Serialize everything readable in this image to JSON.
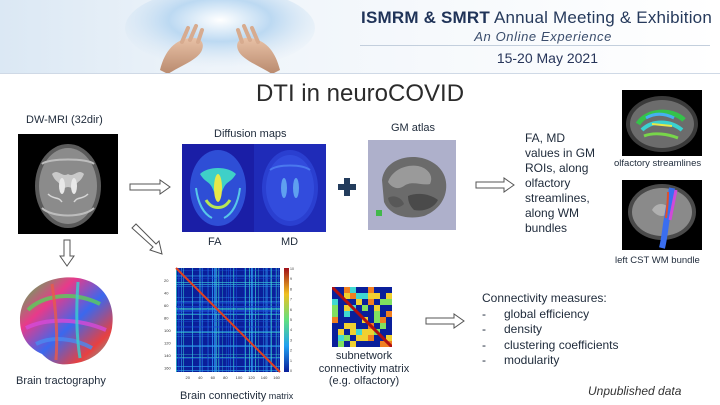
{
  "banner": {
    "conference_title_bold": "ISMRM & SMRT",
    "conference_title_rest": " Annual Meeting & Exhibition",
    "subtitle": "An Online Experience",
    "dates": "15-20 May 2021"
  },
  "slide": {
    "title": "DTI in neuroCOVID",
    "dwmri_label": "DW-MRI (32dir)",
    "diffusion_maps_label": "Diffusion maps",
    "fa_label": "FA",
    "md_label": "MD",
    "gm_atlas_label": "GM atlas",
    "values_text": [
      "FA, MD",
      "values in GM",
      "ROIs, along",
      "olfactory",
      "streamlines,",
      "along WM",
      "bundles"
    ],
    "olfactory_label": "olfactory streamlines",
    "cst_label": "left CST WM bundle",
    "tractography_label": "Brain tractography",
    "connectivity_label_main": "Brain connectivity",
    "connectivity_label_small": " matrix",
    "subnetwork_label": [
      "subnetwork",
      "connectivity matrix",
      "(e.g. olfactory)"
    ],
    "measures_title": "Connectivity measures:",
    "measures": [
      "global efficiency",
      "density",
      "clustering coefficients",
      "modularity"
    ],
    "bullet_marker": "-",
    "unpublished": "Unpublished data",
    "matrix_axis_ticks": [
      "20",
      "40",
      "60",
      "80",
      "100",
      "120",
      "140",
      "160"
    ],
    "colorbar_ticks": [
      "10",
      "9",
      "8",
      "7",
      "6",
      "5",
      "4",
      "3",
      "2",
      "1",
      "0"
    ]
  }
}
